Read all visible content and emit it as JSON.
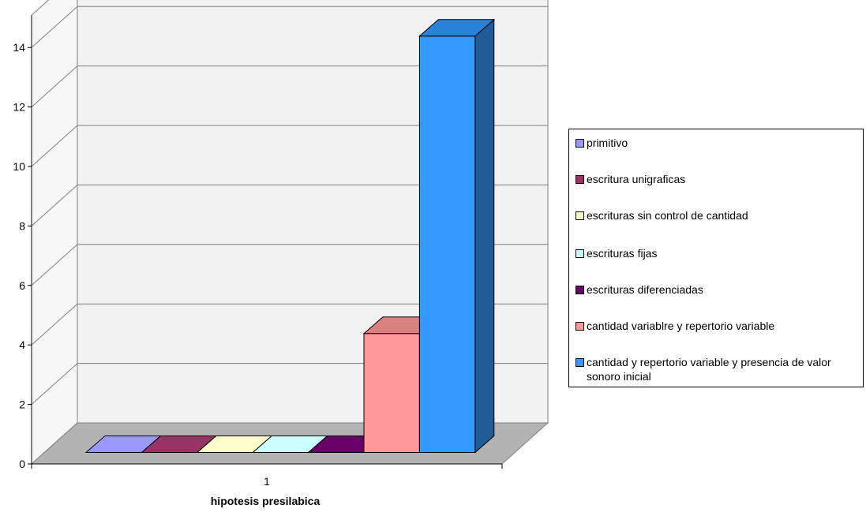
{
  "chart_data": {
    "type": "bar",
    "categories": [
      "1"
    ],
    "xlabel": "hipotesis presilabica",
    "ylabel": "",
    "ylim": [
      0,
      14
    ],
    "yticks": [
      0,
      2,
      4,
      6,
      8,
      10,
      12,
      14
    ],
    "grid": true,
    "legend_position": "right",
    "series": [
      {
        "name": "primitivo",
        "values": [
          0
        ],
        "color": "#9999ff"
      },
      {
        "name": "escritura unigraficas",
        "values": [
          0
        ],
        "color": "#993366"
      },
      {
        "name": "escrituras sin control de cantidad",
        "values": [
          0
        ],
        "color": "#ffffcc"
      },
      {
        "name": "escrituras fijas",
        "values": [
          0
        ],
        "color": "#ccffff"
      },
      {
        "name": "escrituras diferenciadas",
        "values": [
          0
        ],
        "color": "#660066"
      },
      {
        "name": "cantidad variablre y repertorio variable",
        "values": [
          4
        ],
        "color": "#ff9999"
      },
      {
        "name": "cantidad y repertorio variable y presencia de valor sonoro inicial",
        "values": [
          14
        ],
        "color": "#3399ff"
      }
    ]
  }
}
